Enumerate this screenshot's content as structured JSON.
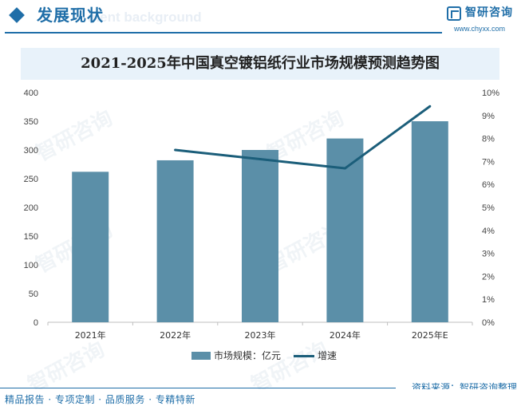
{
  "header": {
    "section_title": "发展现状",
    "section_watermark": "ment background",
    "logo_name": "智研咨询",
    "logo_url": "www.chyxx.com"
  },
  "watermark_text": "智研咨询",
  "legend": {
    "bar_label": "市场规模：亿元",
    "line_label": "增速"
  },
  "source_text": "资料来源：智研咨询整理",
  "footer_text": "精品报告 · 专项定制 · 品质服务 · 专精特新",
  "colors": {
    "bar": "#5b8fa8",
    "line": "#1b5e7a",
    "accent": "#1f6ea8"
  },
  "chart_data": {
    "type": "bar",
    "title": "2021-2025年中国真空镀铝纸行业市场规模预测趋势图",
    "categories": [
      "2021年",
      "2022年",
      "2023年",
      "2024年",
      "2025年E"
    ],
    "series": [
      {
        "name": "市场规模：亿元",
        "type": "bar",
        "axis": "left",
        "values": [
          262,
          282,
          300,
          320,
          350
        ]
      },
      {
        "name": "增速",
        "type": "line",
        "axis": "right",
        "values": [
          null,
          7.5,
          7.1,
          6.7,
          9.4
        ]
      }
    ],
    "ylim": [
      0,
      400
    ],
    "yticks": [
      0,
      50,
      100,
      150,
      200,
      250,
      300,
      350,
      400
    ],
    "y2lim": [
      0,
      10
    ],
    "y2ticks": [
      "0%",
      "1%",
      "2%",
      "3%",
      "4%",
      "5%",
      "6%",
      "7%",
      "8%",
      "9%",
      "10%"
    ],
    "grid": false,
    "legend_position": "bottom"
  }
}
